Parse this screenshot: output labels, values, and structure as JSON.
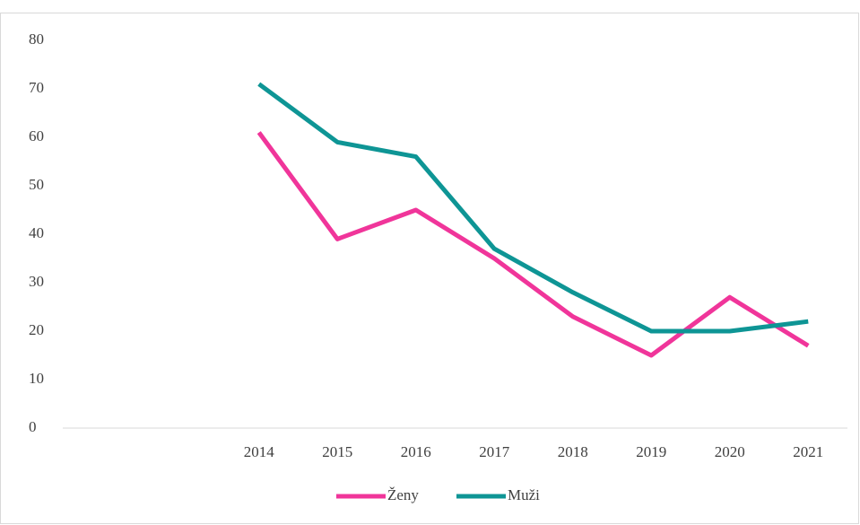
{
  "chart_data": {
    "type": "line",
    "categories": [
      null,
      null,
      "2014",
      "2015",
      "2016",
      "2017",
      "2018",
      "2019",
      "2020",
      "2021"
    ],
    "series": [
      {
        "name": "Ženy",
        "color": "#f0359a",
        "values": [
          null,
          null,
          61,
          39,
          45,
          35,
          23,
          15,
          27,
          17
        ]
      },
      {
        "name": "Muži",
        "color": "#0e9595",
        "values": [
          null,
          null,
          71,
          59,
          56,
          37,
          28,
          20,
          20,
          22
        ]
      }
    ],
    "ylim": [
      0,
      80
    ],
    "yticks": [
      0,
      10,
      20,
      30,
      40,
      50,
      60,
      70,
      80
    ],
    "grid": false,
    "legend": "bottom"
  }
}
